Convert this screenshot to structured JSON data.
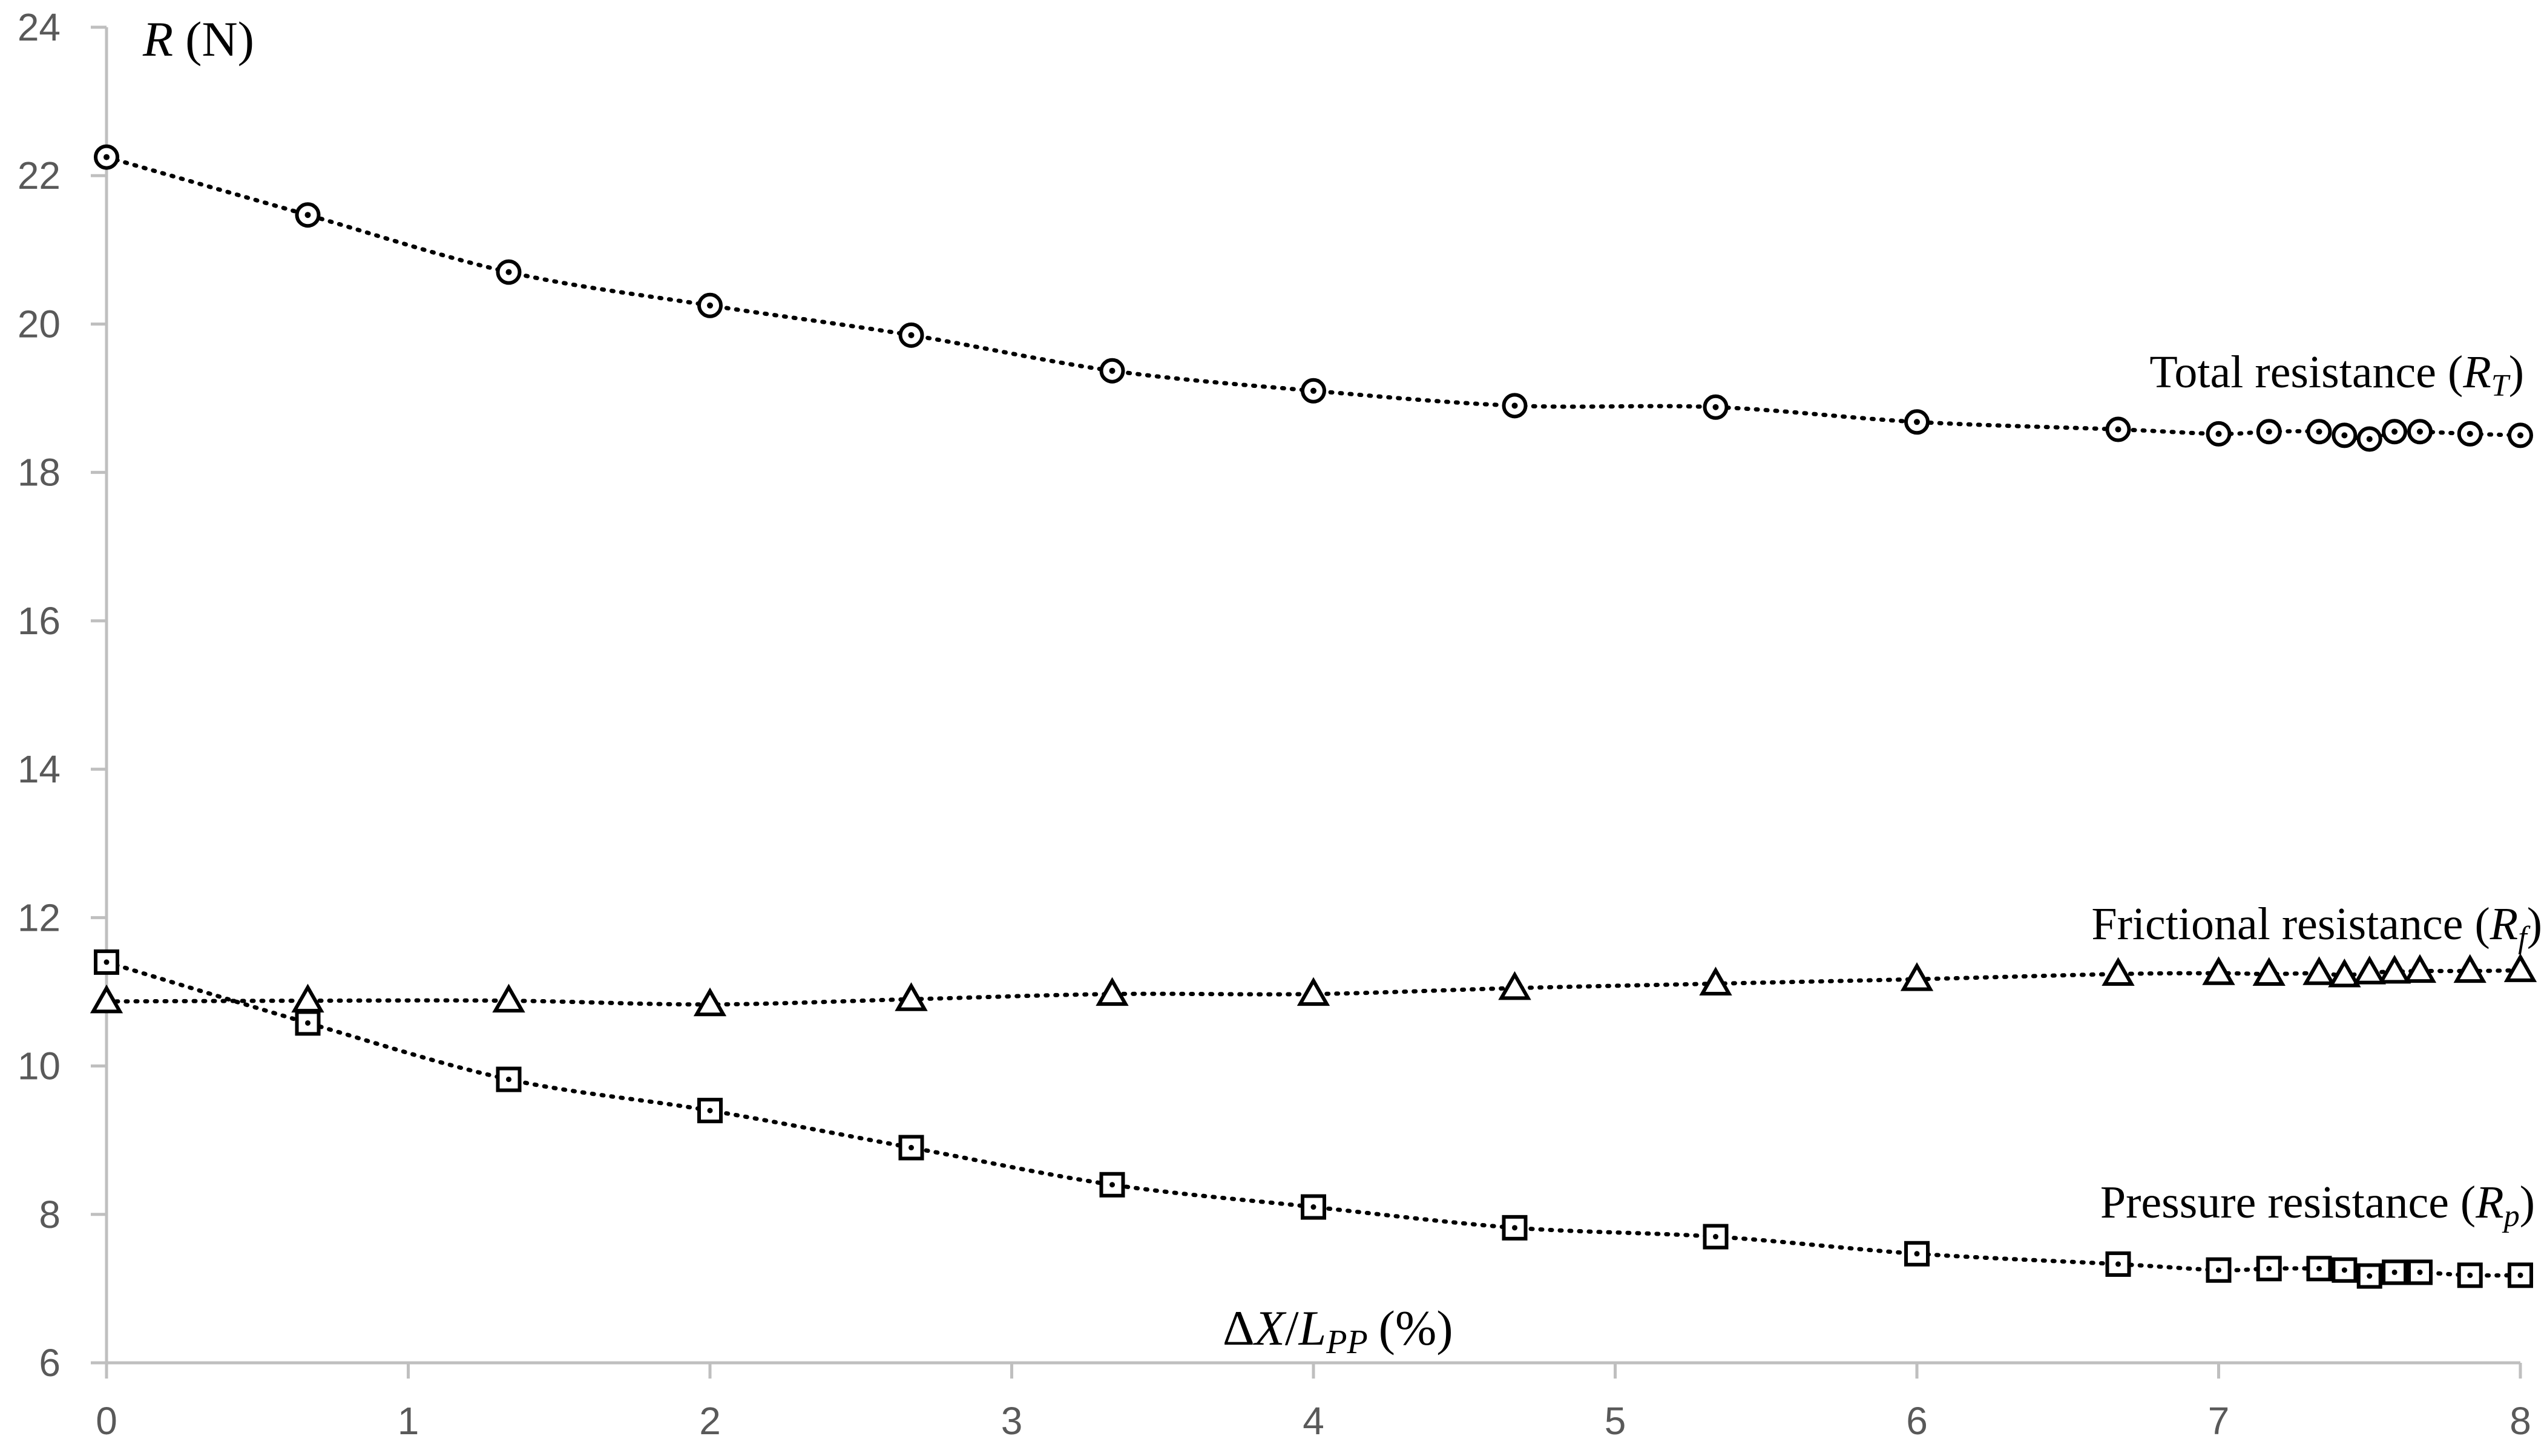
{
  "chart_data": {
    "type": "scatter",
    "title": "",
    "xlabel": "ΔX/L_PP (%)",
    "xlabel_parts": {
      "delta": "Δ",
      "x": "X",
      "slash": "/",
      "l": "L",
      "sub": "PP",
      "unit": "(%)"
    },
    "ylabel": "R (N)",
    "ylabel_parts": {
      "var": "R",
      "unit": "(N)"
    },
    "xlim": [
      0,
      8
    ],
    "ylim": [
      6,
      24
    ],
    "x_ticks": [
      "0",
      "1",
      "2",
      "3",
      "4",
      "5",
      "6",
      "7",
      "8"
    ],
    "y_ticks": [
      "6",
      "8",
      "10",
      "12",
      "14",
      "16",
      "18",
      "20",
      "22",
      "24"
    ],
    "grid": false,
    "trendline": "dotted",
    "series": [
      {
        "name": "Total resistance (R_T)",
        "label": {
          "text": "Total resistance (",
          "var": "R",
          "sub": "T",
          "close": ")"
        },
        "marker": "circle-dot",
        "x": [
          0,
          0.667,
          1.333,
          2.0,
          2.667,
          3.333,
          4.0,
          4.667,
          5.333,
          6.0,
          6.667,
          7.0,
          7.167,
          7.333,
          7.417,
          7.5,
          7.583,
          7.667,
          7.833,
          8.0
        ],
        "y": [
          22.25,
          21.47,
          20.7,
          20.25,
          19.85,
          19.37,
          19.1,
          18.9,
          18.88,
          18.68,
          18.58,
          18.52,
          18.55,
          18.55,
          18.5,
          18.45,
          18.55,
          18.55,
          18.52,
          18.5
        ]
      },
      {
        "name": "Frictional resistance (R_f)",
        "label": {
          "text": "Frictional resistance (",
          "var": "R",
          "sub": "f",
          "close": ")"
        },
        "marker": "triangle",
        "x": [
          0,
          0.667,
          1.333,
          2.0,
          2.667,
          3.333,
          4.0,
          4.667,
          5.333,
          6.0,
          6.667,
          7.0,
          7.167,
          7.333,
          7.417,
          7.5,
          7.583,
          7.667,
          7.833,
          8.0
        ],
        "y": [
          10.87,
          10.88,
          10.88,
          10.83,
          10.9,
          10.97,
          10.97,
          11.05,
          11.11,
          11.17,
          11.24,
          11.25,
          11.24,
          11.25,
          11.22,
          11.26,
          11.27,
          11.28,
          11.28,
          11.29
        ]
      },
      {
        "name": "Pressure resistance (R_p)",
        "label": {
          "text": "Pressure resistance (",
          "var": "R",
          "sub": "p",
          "close": ")"
        },
        "marker": "square-dot",
        "x": [
          0,
          0.667,
          1.333,
          2.0,
          2.667,
          3.333,
          4.0,
          4.667,
          5.333,
          6.0,
          6.667,
          7.0,
          7.167,
          7.333,
          7.417,
          7.5,
          7.583,
          7.667,
          7.833,
          8.0
        ],
        "y": [
          11.4,
          10.58,
          9.82,
          9.4,
          8.9,
          8.4,
          8.1,
          7.82,
          7.7,
          7.47,
          7.33,
          7.25,
          7.27,
          7.27,
          7.25,
          7.17,
          7.22,
          7.22,
          7.18,
          7.18
        ]
      }
    ]
  }
}
